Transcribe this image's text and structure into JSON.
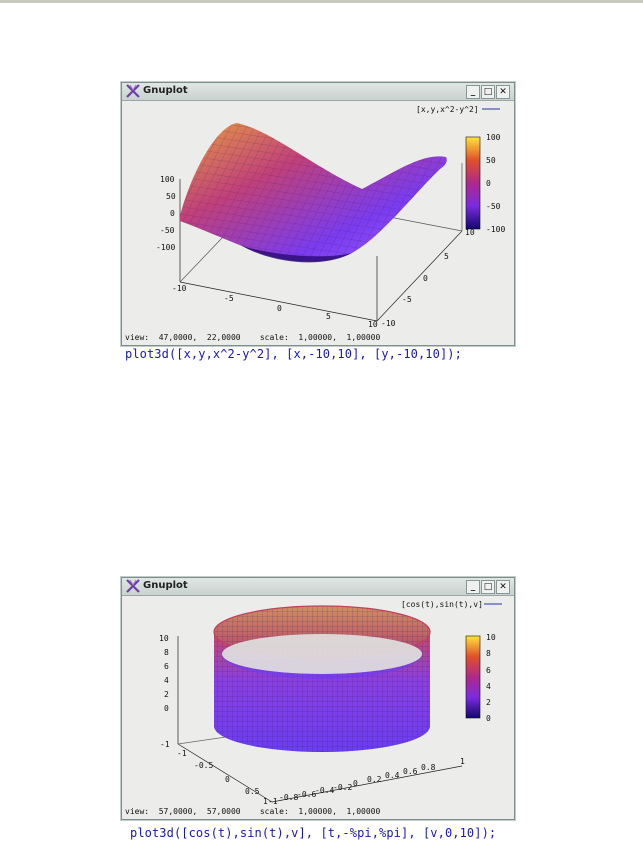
{
  "windows": [
    {
      "title": "Gnuplot",
      "buttons": {
        "minimize": "_",
        "maximize": "□",
        "close": "✕"
      },
      "legend": "[x,y,x^2-y^2]",
      "status": "view:  47,0000,  22,0000    scale:  1,00000,  1,00000",
      "command": "plot3d([x,y,x^2-y^2], [x,-10,10], [y,-10,10]);",
      "z_ticks": [
        "100",
        "50",
        "0",
        "-50",
        "-100"
      ],
      "x_ticks": [
        "-10",
        "-5",
        "0",
        "5",
        "10"
      ],
      "y_ticks": [
        "10",
        "5",
        "0",
        "-5",
        "-10"
      ],
      "colorbar_ticks": [
        "100",
        "50",
        "0",
        "-50",
        "-100"
      ]
    },
    {
      "title": "Gnuplot",
      "buttons": {
        "minimize": "_",
        "maximize": "□",
        "close": "✕"
      },
      "legend": "[cos(t),sin(t),v]",
      "status": "view:  57,0000,  57,0000    scale:  1,00000,  1,00000",
      "command": "plot3d([cos(t),sin(t),v], [t,-%pi,%pi], [v,0,10]);",
      "z_ticks": [
        "10",
        "8",
        "6",
        "4",
        "2",
        "0",
        "-1"
      ],
      "x_ticks": [
        "-1",
        "-0.5",
        "0",
        "0.5",
        "1"
      ],
      "y_ticks": [
        "-1",
        "-0.8",
        "-0.6",
        "-0.4",
        "-0.2",
        "0",
        "0.2",
        "0.4",
        "0.6",
        "0.8",
        "1"
      ],
      "colorbar_ticks": [
        "10",
        "8",
        "6",
        "4",
        "2",
        "0"
      ]
    }
  ],
  "colors": {
    "command_text": "#1a1aa8",
    "legend_line": "#2233aa",
    "palette_low": "#1a0a7a",
    "palette_mid": "#d0303a",
    "palette_high": "#ffe23a"
  }
}
